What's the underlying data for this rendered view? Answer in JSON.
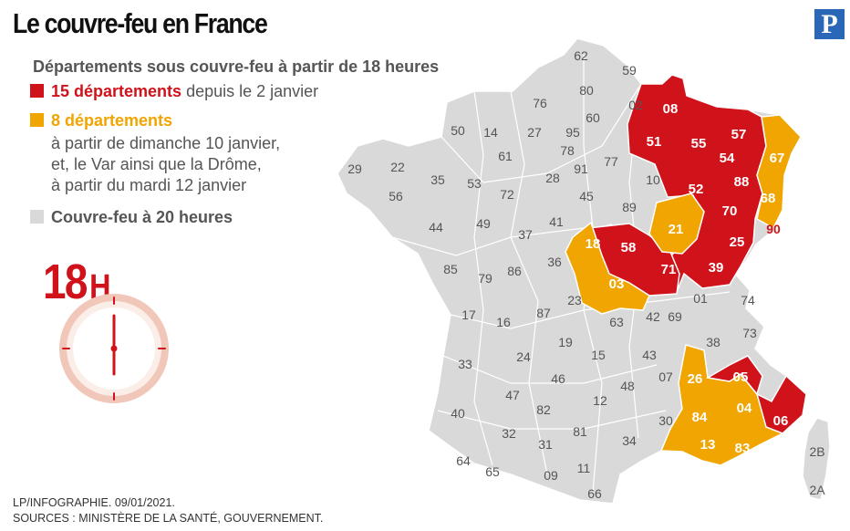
{
  "title": "Le couvre-feu en France",
  "logo_letter": "P",
  "subtitle": "Départements sous couvre-feu à partir de 18 heures",
  "legend": {
    "red": {
      "color": "#d0121b",
      "bold": "15 départements",
      "rest": " depuis le 2 janvier"
    },
    "orange": {
      "color": "#f0a500",
      "bold": "8 départements",
      "lines": [
        "à partir de dimanche 10 janvier,",
        "et, le Var ainsi que la Drôme,",
        "à partir du mardi 12 janvier"
      ]
    },
    "gray": {
      "color": "#d9d9d9",
      "label": "Couvre-feu à 20 heures"
    }
  },
  "clock": {
    "big": "18",
    "unit": "H"
  },
  "credit": {
    "line1": "LP/INFOGRAPHIE.  09/01/2021.",
    "line2": "SOURCES : MINISTÈRE DE LA SANTÉ, GOUVERNEMENT."
  },
  "colors": {
    "red": "#d0121b",
    "orange": "#f0a500",
    "gray": "#d9d9d9",
    "border": "#ffffff"
  },
  "departments": {
    "red": [
      "08",
      "51",
      "55",
      "57",
      "54",
      "67",
      "52",
      "88",
      "70",
      "90",
      "25",
      "39",
      "71",
      "58",
      "21"
    ],
    "orange": [
      "18",
      "03",
      "68",
      "26",
      "05",
      "04",
      "06",
      "84",
      "13",
      "83"
    ],
    "gray_labels": [
      "62",
      "59",
      "80",
      "76",
      "02",
      "60",
      "95",
      "14",
      "27",
      "78",
      "50",
      "61",
      "91",
      "77",
      "28",
      "45",
      "29",
      "22",
      "35",
      "53",
      "72",
      "10",
      "56",
      "89",
      "44",
      "49",
      "37",
      "41",
      "85",
      "79",
      "86",
      "36",
      "17",
      "16",
      "87",
      "23",
      "63",
      "01",
      "74",
      "19",
      "42",
      "69",
      "33",
      "24",
      "15",
      "43",
      "73",
      "38",
      "47",
      "46",
      "48",
      "07",
      "12",
      "40",
      "82",
      "81",
      "30",
      "32",
      "31",
      "34",
      "64",
      "65",
      "09",
      "11",
      "66",
      "2B",
      "2A"
    ]
  }
}
